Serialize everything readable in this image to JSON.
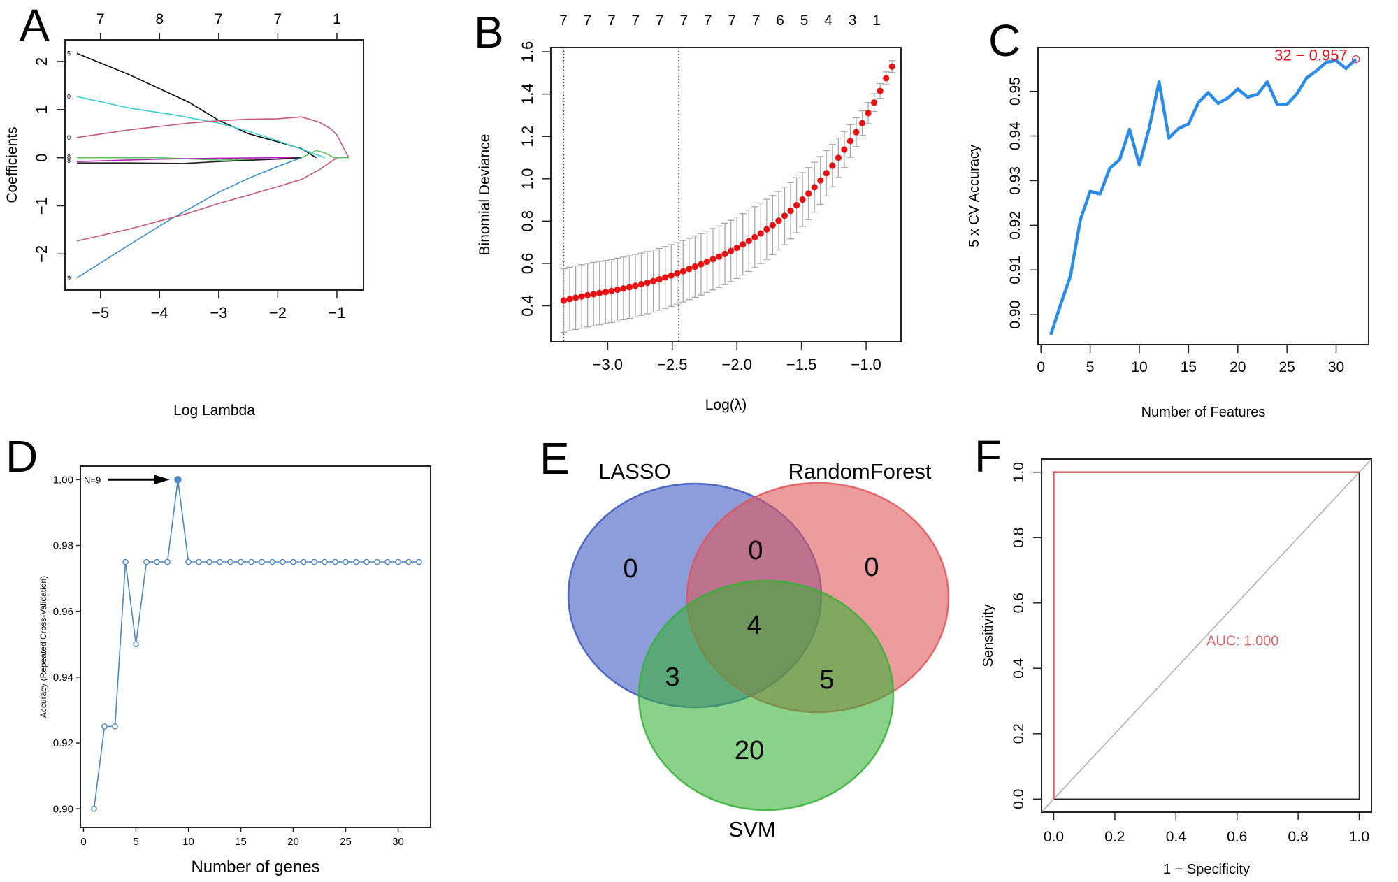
{
  "figure": {
    "panel_labels": [
      "A",
      "B",
      "C",
      "D",
      "E",
      "F"
    ]
  },
  "chart_data": [
    {
      "panel": "A",
      "type": "line",
      "title": "",
      "xlabel": "Log Lambda",
      "ylabel": "Coefficients",
      "xlim": [
        -5.6,
        -0.55
      ],
      "ylim": [
        -2.75,
        2.45
      ],
      "xticks": [
        -5,
        -4,
        -3,
        -2,
        -1
      ],
      "xtick_labels": [
        "−5",
        "−4",
        "−3",
        "−2",
        "−1"
      ],
      "yticks": [
        -2,
        -1,
        0,
        1,
        2
      ],
      "ytick_labels": [
        "−2",
        "−1",
        "0",
        "1",
        "2"
      ],
      "top_axis": {
        "ticks": [
          -5,
          -4,
          -3,
          -2,
          -1
        ],
        "labels": [
          "7",
          "8",
          "7",
          "7",
          "1"
        ]
      },
      "left_edge_labels": [
        "5",
        "0",
        "0",
        "8",
        "8",
        "9"
      ],
      "series": [
        {
          "name": "coef-black-top",
          "color": "#000000",
          "x": [
            -5.4,
            -4.5,
            -3.5,
            -3.0,
            -2.5,
            -2.0,
            -1.6,
            -1.35
          ],
          "y": [
            2.17,
            1.72,
            1.15,
            0.78,
            0.5,
            0.33,
            0.19,
            0.0
          ]
        },
        {
          "name": "coef-cyan",
          "color": "#3fcfd3",
          "x": [
            -5.4,
            -4.5,
            -3.8,
            -3.0,
            -2.5,
            -2.0,
            -1.6,
            -1.2
          ],
          "y": [
            1.27,
            1.03,
            0.9,
            0.72,
            0.55,
            0.35,
            0.18,
            0.0
          ]
        },
        {
          "name": "coef-pink-upper",
          "color": "#c25a7c",
          "x": [
            -5.4,
            -4.5,
            -3.5,
            -3.0,
            -2.5,
            -2.0,
            -1.6,
            -1.3,
            -1.1,
            -1.0,
            -0.8
          ],
          "y": [
            0.42,
            0.58,
            0.72,
            0.77,
            0.8,
            0.81,
            0.85,
            0.74,
            0.6,
            0.47,
            0.0
          ]
        },
        {
          "name": "coef-green",
          "color": "#5fc05f",
          "x": [
            -5.4,
            -4.0,
            -3.0,
            -2.0,
            -1.6,
            -1.35,
            -1.2,
            -1.05,
            -0.8
          ],
          "y": [
            0.0,
            0.0,
            -0.05,
            -0.03,
            0.0,
            0.15,
            0.1,
            0.0,
            0.0
          ]
        },
        {
          "name": "coef-magenta",
          "color": "#b81ab8",
          "x": [
            -5.4,
            -4.0,
            -3.0,
            -2.0,
            -1.6
          ],
          "y": [
            -0.08,
            -0.03,
            -0.01,
            0.0,
            0.0
          ]
        },
        {
          "name": "coef-black-bottom",
          "color": "#222222",
          "x": [
            -5.4,
            -4.5,
            -3.6,
            -3.0,
            -2.0,
            -1.6
          ],
          "y": [
            -0.11,
            -0.11,
            -0.12,
            -0.08,
            -0.03,
            0.0
          ]
        },
        {
          "name": "coef-blue",
          "color": "#3b8fce",
          "x": [
            -5.4,
            -4.5,
            -3.8,
            -3.0,
            -2.5,
            -2.0,
            -1.6
          ],
          "y": [
            -2.5,
            -1.8,
            -1.27,
            -0.72,
            -0.43,
            -0.18,
            0.0
          ]
        },
        {
          "name": "coef-pink-lower",
          "color": "#c25a7c",
          "x": [
            -5.4,
            -4.5,
            -3.5,
            -3.0,
            -2.5,
            -2.0,
            -1.6,
            -1.3,
            -1.0
          ],
          "y": [
            -1.73,
            -1.48,
            -1.15,
            -0.95,
            -0.78,
            -0.6,
            -0.45,
            -0.25,
            0.0
          ]
        }
      ]
    },
    {
      "panel": "B",
      "type": "scatter",
      "title": "",
      "xlabel": "Log(λ)",
      "ylabel": "Binomial Deviance",
      "xlim": [
        -3.44,
        -0.73
      ],
      "ylim": [
        0.23,
        1.62
      ],
      "xticks": [
        -3.0,
        -2.5,
        -2.0,
        -1.5,
        -1.0
      ],
      "xtick_labels": [
        "−3.0",
        "−2.5",
        "−2.0",
        "−1.5",
        "−1.0"
      ],
      "yticks": [
        0.4,
        0.6,
        0.8,
        1.0,
        1.2,
        1.4,
        1.6
      ],
      "ytick_labels": [
        "0.4",
        "0.6",
        "0.8",
        "1.0",
        "1.2",
        "1.4",
        "1.6"
      ],
      "top_axis": {
        "labels": [
          "7",
          "7",
          "7",
          "7",
          "7",
          "7",
          "7",
          "7",
          "7",
          "6",
          "5",
          "4",
          "3",
          "1"
        ]
      },
      "vlines": [
        -3.34,
        -2.45
      ],
      "point_color": "#e81010",
      "errorbar_color": "#a8a8a8",
      "x_start": -3.34,
      "x_step": 0.0462,
      "means": [
        0.425,
        0.432,
        0.438,
        0.444,
        0.45,
        0.455,
        0.46,
        0.465,
        0.47,
        0.476,
        0.482,
        0.488,
        0.495,
        0.502,
        0.509,
        0.517,
        0.525,
        0.534,
        0.543,
        0.553,
        0.563,
        0.574,
        0.585,
        0.596,
        0.608,
        0.62,
        0.632,
        0.645,
        0.659,
        0.674,
        0.69,
        0.707,
        0.724,
        0.742,
        0.761,
        0.781,
        0.802,
        0.825,
        0.849,
        0.875,
        0.902,
        0.93,
        0.96,
        0.992,
        1.026,
        1.062,
        1.099,
        1.138,
        1.178,
        1.22,
        1.263,
        1.31,
        1.36,
        1.415,
        1.475,
        1.53
      ],
      "se": [
        0.15,
        0.15,
        0.15,
        0.15,
        0.15,
        0.15,
        0.15,
        0.149,
        0.149,
        0.149,
        0.148,
        0.148,
        0.148,
        0.147,
        0.147,
        0.147,
        0.146,
        0.146,
        0.146,
        0.145,
        0.145,
        0.145,
        0.145,
        0.145,
        0.145,
        0.145,
        0.145,
        0.145,
        0.145,
        0.145,
        0.145,
        0.145,
        0.144,
        0.143,
        0.142,
        0.14,
        0.138,
        0.136,
        0.133,
        0.13,
        0.127,
        0.123,
        0.118,
        0.113,
        0.107,
        0.1,
        0.093,
        0.085,
        0.077,
        0.068,
        0.058,
        0.05,
        0.042,
        0.035,
        0.03,
        0.028
      ]
    },
    {
      "panel": "C",
      "type": "line",
      "title": "",
      "xlabel": "Number of Features",
      "ylabel": "5 x CV Accuracy",
      "xlim": [
        -0.3,
        33.3
      ],
      "ylim": [
        0.8933,
        0.9598
      ],
      "xticks": [
        0,
        5,
        10,
        15,
        20,
        25,
        30
      ],
      "xtick_labels": [
        "0",
        "5",
        "10",
        "15",
        "20",
        "25",
        "30"
      ],
      "yticks": [
        0.9,
        0.91,
        0.92,
        0.93,
        0.94,
        0.95
      ],
      "ytick_labels": [
        "0.90",
        "0.91",
        "0.92",
        "0.93",
        "0.94",
        "0.95"
      ],
      "line_color": "#2b8ce8",
      "x": [
        1,
        2,
        3,
        4,
        5,
        6,
        7,
        8,
        9,
        10,
        11,
        12,
        13,
        14,
        15,
        16,
        17,
        18,
        19,
        20,
        21,
        22,
        23,
        24,
        25,
        26,
        27,
        28,
        29,
        30,
        31,
        32
      ],
      "y": [
        0.8955,
        0.9023,
        0.9087,
        0.9212,
        0.9276,
        0.927,
        0.9328,
        0.9347,
        0.9415,
        0.9335,
        0.9418,
        0.9521,
        0.9395,
        0.9417,
        0.9427,
        0.9475,
        0.9497,
        0.9473,
        0.9485,
        0.9505,
        0.9487,
        0.9493,
        0.9521,
        0.9471,
        0.9471,
        0.9494,
        0.953,
        0.9546,
        0.9565,
        0.9569,
        0.9551,
        0.9572
      ],
      "annotation": {
        "text": "32 − 0.957",
        "x": 32,
        "y": 0.9572,
        "color": "#e0101c",
        "marker_color": "#c3486a"
      }
    },
    {
      "panel": "D",
      "type": "line",
      "title": "",
      "xlabel": "Number of genes",
      "ylabel": "Accuracy (Repeated Cross-Validation)",
      "xlim": [
        -0.3,
        33.1
      ],
      "ylim": [
        0.8943,
        1.0041
      ],
      "xticks": [
        0,
        5,
        10,
        15,
        20,
        25,
        30
      ],
      "xtick_labels": [
        "0",
        "5",
        "10",
        "15",
        "20",
        "25",
        "30"
      ],
      "yticks": [
        0.9,
        0.92,
        0.94,
        0.96,
        0.98,
        1.0
      ],
      "ytick_labels": [
        "0.90",
        "0.92",
        "0.94",
        "0.96",
        "0.98",
        "1.00"
      ],
      "line_color": "#4a86c0",
      "x": [
        1,
        2,
        3,
        4,
        5,
        6,
        7,
        8,
        9,
        10,
        11,
        12,
        13,
        14,
        15,
        16,
        17,
        18,
        19,
        20,
        21,
        22,
        23,
        24,
        25,
        26,
        27,
        28,
        29,
        30,
        31,
        32
      ],
      "y": [
        0.9,
        0.925,
        0.925,
        0.975,
        0.95,
        0.975,
        0.975,
        0.975,
        1.0,
        0.975,
        0.975,
        0.975,
        0.975,
        0.975,
        0.975,
        0.975,
        0.975,
        0.975,
        0.975,
        0.975,
        0.975,
        0.975,
        0.975,
        0.975,
        0.975,
        0.975,
        0.975,
        0.975,
        0.975,
        0.975,
        0.975,
        0.975
      ],
      "highlight": {
        "x": 9,
        "y": 1.0,
        "label": "N=9"
      }
    },
    {
      "panel": "E",
      "type": "venn",
      "sets": [
        {
          "name": "LASSO",
          "color": "#3a56c0"
        },
        {
          "name": "RandomForest",
          "color": "#e05458"
        },
        {
          "name": "SVM",
          "color": "#35b035"
        }
      ],
      "regions": [
        {
          "sets": [
            "LASSO"
          ],
          "count": "0"
        },
        {
          "sets": [
            "LASSO",
            "RandomForest"
          ],
          "count": "0"
        },
        {
          "sets": [
            "RandomForest"
          ],
          "count": "0"
        },
        {
          "sets": [
            "LASSO",
            "RandomForest",
            "SVM"
          ],
          "count": "4"
        },
        {
          "sets": [
            "LASSO",
            "SVM"
          ],
          "count": "3"
        },
        {
          "sets": [
            "RandomForest",
            "SVM"
          ],
          "count": "5"
        },
        {
          "sets": [
            "SVM"
          ],
          "count": "20"
        }
      ]
    },
    {
      "panel": "F",
      "type": "line",
      "title": "",
      "xlabel": "1 − Specificity",
      "ylabel": "Sensitivity",
      "xlim": [
        -0.04,
        1.04
      ],
      "ylim": [
        -0.04,
        1.04
      ],
      "xticks": [
        0.0,
        0.2,
        0.4,
        0.6,
        0.8,
        1.0
      ],
      "xtick_labels": [
        "0.0",
        "0.2",
        "0.4",
        "0.6",
        "0.8",
        "1.0"
      ],
      "yticks": [
        0.0,
        0.2,
        0.4,
        0.6,
        0.8,
        1.0
      ],
      "ytick_labels": [
        "0.0",
        "0.2",
        "0.4",
        "0.6",
        "0.8",
        "1.0"
      ],
      "roc": {
        "x": [
          0,
          0,
          1
        ],
        "y": [
          0,
          1,
          1
        ],
        "color": "#d9676e"
      },
      "diagonal_color": "#a8a8a8",
      "annotation": {
        "text": "AUC: 1.000",
        "x": 0.5,
        "y": 0.47,
        "color": "#d9676e"
      },
      "auc": 1.0
    }
  ]
}
